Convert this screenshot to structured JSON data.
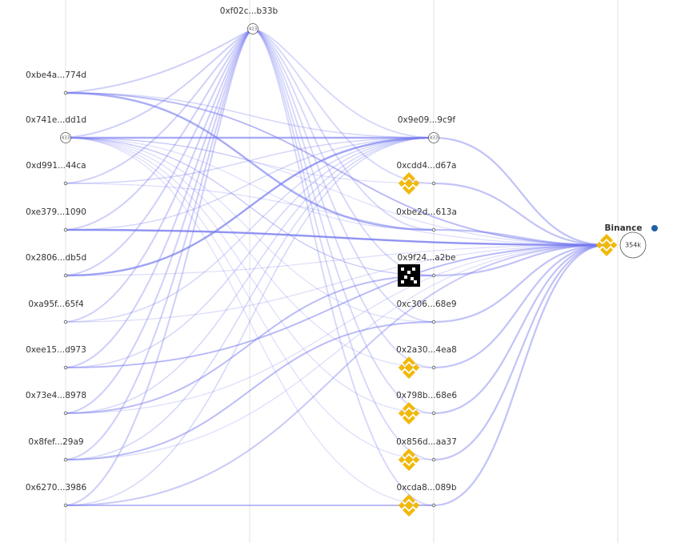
{
  "left_nodes": [
    {
      "label": "0xbe4a...774d"
    },
    {
      "label": "0x741e...dd1d",
      "badge": "433"
    },
    {
      "label": "0xd991...44ca"
    },
    {
      "label": "0xe379...1090"
    },
    {
      "label": "0x2806...db5d"
    },
    {
      "label": "0xa95f...65f4"
    },
    {
      "label": "0xee15...d973"
    },
    {
      "label": "0x73e4...8978"
    },
    {
      "label": "0x8fef...29a9"
    },
    {
      "label": "0x6270...3986"
    }
  ],
  "hub": {
    "label": "0xf02c...b33b",
    "badge": "423"
  },
  "middle_nodes": [
    {
      "label": "0x9e09...9c9f",
      "badge": "433"
    },
    {
      "label": "0xcdd4...d67a"
    },
    {
      "label": "0xbe2d...613a"
    },
    {
      "label": "0x9f24...a2be"
    },
    {
      "label": "0xc306...68e9"
    },
    {
      "label": "0x2a30...4ea8"
    },
    {
      "label": "0x798b...68e6"
    },
    {
      "label": "0x856d...aa37"
    },
    {
      "label": "0xcda8...089b"
    }
  ],
  "exchange": {
    "label": "Binance",
    "badge": "354k"
  }
}
